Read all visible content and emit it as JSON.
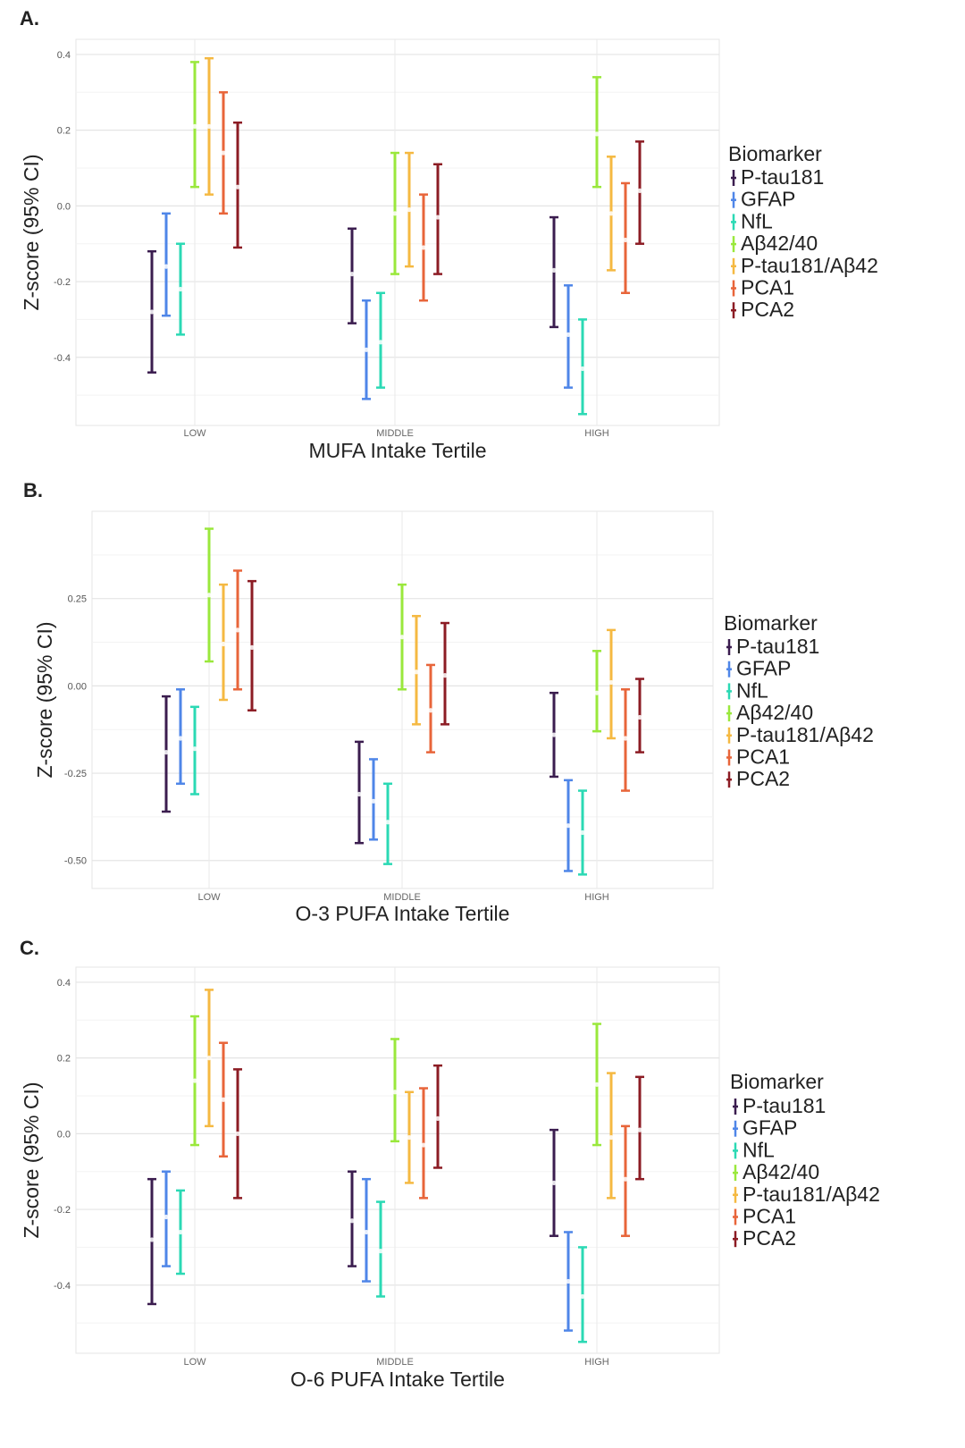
{
  "chart_data": [
    {
      "panel": "A.",
      "type": "errorbar",
      "xlabel": "MUFA Intake Tertile",
      "ylabel": "Z-score (95% CI)",
      "categories": [
        "LOW",
        "MIDDLE",
        "HIGH"
      ],
      "ylim": [
        -0.58,
        0.44
      ],
      "yticks": [
        0.4,
        0.2,
        0.0,
        -0.2,
        -0.4
      ],
      "ytick_labels": [
        "0.4",
        "0.2",
        "0.0",
        "-0.2",
        "-0.4"
      ],
      "grid": true,
      "legend_title": "Biomarker",
      "legend_position": "right",
      "series": [
        {
          "name": "P-tau181",
          "color": "#3b1d4f",
          "points": [
            {
              "est": -0.28,
              "lo": -0.44,
              "hi": -0.12
            },
            {
              "est": -0.18,
              "lo": -0.31,
              "hi": -0.06
            },
            {
              "est": -0.17,
              "lo": -0.32,
              "hi": -0.03
            }
          ]
        },
        {
          "name": "GFAP",
          "color": "#4f86e8",
          "points": [
            {
              "est": -0.16,
              "lo": -0.29,
              "hi": -0.02
            },
            {
              "est": -0.38,
              "lo": -0.51,
              "hi": -0.25
            },
            {
              "est": -0.34,
              "lo": -0.48,
              "hi": -0.21
            }
          ]
        },
        {
          "name": "NfL",
          "color": "#2bd9b4",
          "points": [
            {
              "est": -0.22,
              "lo": -0.34,
              "hi": -0.1
            },
            {
              "est": -0.36,
              "lo": -0.48,
              "hi": -0.23
            },
            {
              "est": -0.43,
              "lo": -0.55,
              "hi": -0.3
            }
          ]
        },
        {
          "name": "Aβ42/40",
          "color": "#9ae83c",
          "points": [
            {
              "est": 0.21,
              "lo": 0.05,
              "hi": 0.38
            },
            {
              "est": -0.02,
              "lo": -0.18,
              "hi": 0.14
            },
            {
              "est": 0.19,
              "lo": 0.05,
              "hi": 0.34
            }
          ]
        },
        {
          "name": "P-tau181/Aβ42",
          "color": "#f5b942",
          "points": [
            {
              "est": 0.21,
              "lo": 0.03,
              "hi": 0.39
            },
            {
              "est": -0.01,
              "lo": -0.16,
              "hi": 0.14
            },
            {
              "est": -0.02,
              "lo": -0.17,
              "hi": 0.13
            }
          ]
        },
        {
          "name": "PCA1",
          "color": "#e8653a",
          "points": [
            {
              "est": 0.14,
              "lo": -0.02,
              "hi": 0.3
            },
            {
              "est": -0.11,
              "lo": -0.25,
              "hi": 0.03
            },
            {
              "est": -0.09,
              "lo": -0.23,
              "hi": 0.06
            }
          ]
        },
        {
          "name": "PCA2",
          "color": "#8c1c24",
          "points": [
            {
              "est": 0.05,
              "lo": -0.11,
              "hi": 0.22
            },
            {
              "est": -0.03,
              "lo": -0.18,
              "hi": 0.11
            },
            {
              "est": 0.04,
              "lo": -0.1,
              "hi": 0.17
            }
          ]
        }
      ]
    },
    {
      "panel": "B.",
      "type": "errorbar",
      "xlabel": "O-3 PUFA Intake Tertile",
      "ylabel": "Z-score (95% CI)",
      "categories": [
        "LOW",
        "MIDDLE",
        "HIGH"
      ],
      "ylim": [
        -0.58,
        0.5
      ],
      "yticks": [
        0.25,
        0.0,
        -0.25,
        -0.5
      ],
      "ytick_labels": [
        "0.25",
        "0.00",
        "-0.25",
        "-0.50"
      ],
      "grid": true,
      "legend_title": "Biomarker",
      "legend_position": "right",
      "series": [
        {
          "name": "P-tau181",
          "color": "#3b1d4f",
          "points": [
            {
              "est": -0.19,
              "lo": -0.36,
              "hi": -0.03
            },
            {
              "est": -0.31,
              "lo": -0.45,
              "hi": -0.16
            },
            {
              "est": -0.14,
              "lo": -0.26,
              "hi": -0.02
            }
          ]
        },
        {
          "name": "GFAP",
          "color": "#4f86e8",
          "points": [
            {
              "est": -0.15,
              "lo": -0.28,
              "hi": -0.01
            },
            {
              "est": -0.33,
              "lo": -0.44,
              "hi": -0.21
            },
            {
              "est": -0.4,
              "lo": -0.53,
              "hi": -0.27
            }
          ]
        },
        {
          "name": "NfL",
          "color": "#2bd9b4",
          "points": [
            {
              "est": -0.18,
              "lo": -0.31,
              "hi": -0.06
            },
            {
              "est": -0.39,
              "lo": -0.51,
              "hi": -0.28
            },
            {
              "est": -0.42,
              "lo": -0.54,
              "hi": -0.3
            }
          ]
        },
        {
          "name": "Aβ42/40",
          "color": "#9ae83c",
          "points": [
            {
              "est": 0.26,
              "lo": 0.07,
              "hi": 0.45
            },
            {
              "est": 0.14,
              "lo": -0.01,
              "hi": 0.29
            },
            {
              "est": -0.02,
              "lo": -0.13,
              "hi": 0.1
            }
          ]
        },
        {
          "name": "P-tau181/Aβ42",
          "color": "#f5b942",
          "points": [
            {
              "est": 0.12,
              "lo": -0.04,
              "hi": 0.29
            },
            {
              "est": 0.04,
              "lo": -0.11,
              "hi": 0.2
            },
            {
              "est": 0.01,
              "lo": -0.15,
              "hi": 0.16
            }
          ]
        },
        {
          "name": "PCA1",
          "color": "#e8653a",
          "points": [
            {
              "est": 0.16,
              "lo": -0.01,
              "hi": 0.33
            },
            {
              "est": -0.07,
              "lo": -0.19,
              "hi": 0.06
            },
            {
              "est": -0.15,
              "lo": -0.3,
              "hi": -0.01
            }
          ]
        },
        {
          "name": "PCA2",
          "color": "#8c1c24",
          "points": [
            {
              "est": 0.11,
              "lo": -0.07,
              "hi": 0.3
            },
            {
              "est": 0.03,
              "lo": -0.11,
              "hi": 0.18
            },
            {
              "est": -0.09,
              "lo": -0.19,
              "hi": 0.02
            }
          ]
        }
      ]
    },
    {
      "panel": "C.",
      "type": "errorbar",
      "xlabel": "O-6 PUFA Intake Tertile",
      "ylabel": "Z-score (95% CI)",
      "categories": [
        "LOW",
        "MIDDLE",
        "HIGH"
      ],
      "ylim": [
        -0.58,
        0.44
      ],
      "yticks": [
        0.4,
        0.2,
        0.0,
        -0.2,
        -0.4
      ],
      "ytick_labels": [
        "0.4",
        "0.2",
        "0.0",
        "-0.2",
        "-0.4"
      ],
      "grid": true,
      "legend_title": "Biomarker",
      "legend_position": "right",
      "series": [
        {
          "name": "P-tau181",
          "color": "#3b1d4f",
          "points": [
            {
              "est": -0.28,
              "lo": -0.45,
              "hi": -0.12
            },
            {
              "est": -0.23,
              "lo": -0.35,
              "hi": -0.1
            },
            {
              "est": -0.13,
              "lo": -0.27,
              "hi": 0.01
            }
          ]
        },
        {
          "name": "GFAP",
          "color": "#4f86e8",
          "points": [
            {
              "est": -0.22,
              "lo": -0.35,
              "hi": -0.1
            },
            {
              "est": -0.26,
              "lo": -0.39,
              "hi": -0.12
            },
            {
              "est": -0.39,
              "lo": -0.52,
              "hi": -0.26
            }
          ]
        },
        {
          "name": "NfL",
          "color": "#2bd9b4",
          "points": [
            {
              "est": -0.26,
              "lo": -0.37,
              "hi": -0.15
            },
            {
              "est": -0.31,
              "lo": -0.43,
              "hi": -0.18
            },
            {
              "est": -0.43,
              "lo": -0.55,
              "hi": -0.3
            }
          ]
        },
        {
          "name": "Aβ42/40",
          "color": "#9ae83c",
          "points": [
            {
              "est": 0.14,
              "lo": -0.03,
              "hi": 0.31
            },
            {
              "est": 0.11,
              "lo": -0.02,
              "hi": 0.25
            },
            {
              "est": 0.13,
              "lo": -0.03,
              "hi": 0.29
            }
          ]
        },
        {
          "name": "P-tau181/Aβ42",
          "color": "#f5b942",
          "points": [
            {
              "est": 0.2,
              "lo": 0.02,
              "hi": 0.38
            },
            {
              "est": -0.01,
              "lo": -0.13,
              "hi": 0.11
            },
            {
              "est": -0.01,
              "lo": -0.17,
              "hi": 0.16
            }
          ]
        },
        {
          "name": "PCA1",
          "color": "#e8653a",
          "points": [
            {
              "est": 0.09,
              "lo": -0.06,
              "hi": 0.24
            },
            {
              "est": -0.03,
              "lo": -0.17,
              "hi": 0.12
            },
            {
              "est": -0.12,
              "lo": -0.27,
              "hi": 0.02
            }
          ]
        },
        {
          "name": "PCA2",
          "color": "#8c1c24",
          "points": [
            {
              "est": 0.0,
              "lo": -0.17,
              "hi": 0.17
            },
            {
              "est": 0.04,
              "lo": -0.09,
              "hi": 0.18
            },
            {
              "est": 0.01,
              "lo": -0.12,
              "hi": 0.15
            }
          ]
        }
      ]
    }
  ]
}
